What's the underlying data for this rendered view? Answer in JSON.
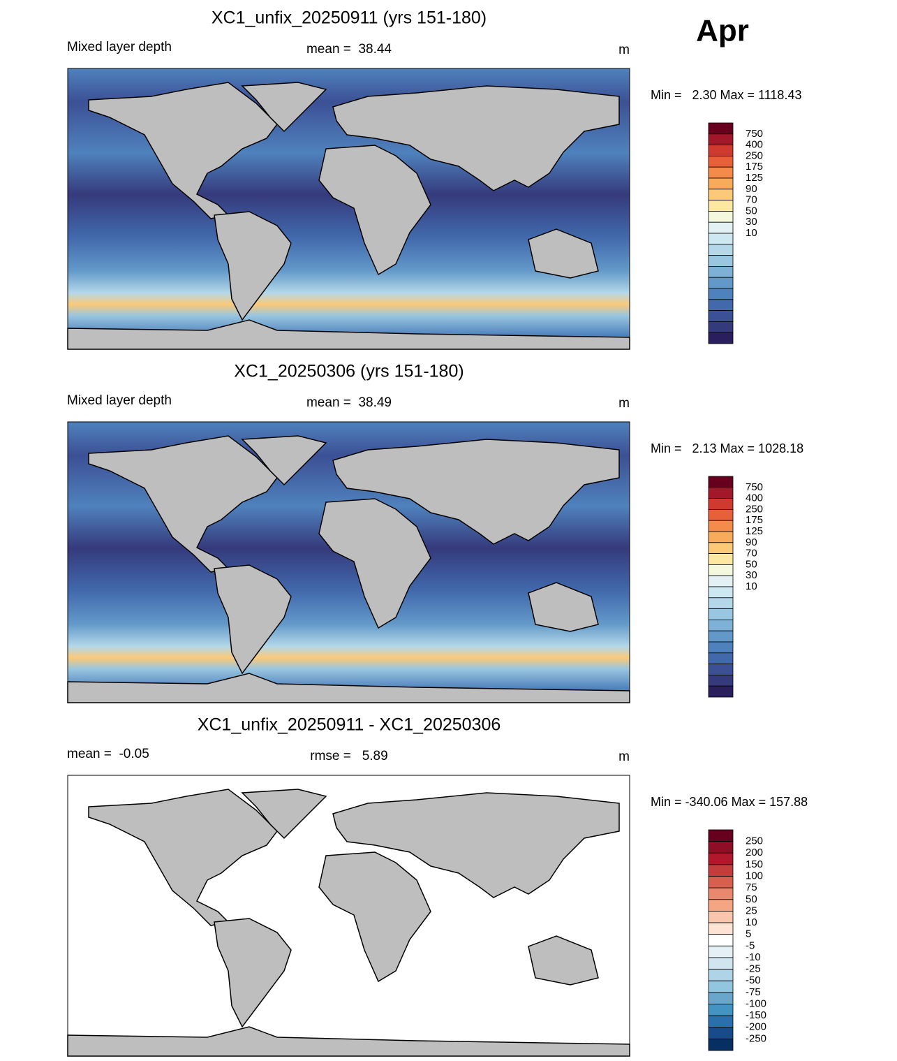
{
  "month": "Apr",
  "panels": [
    {
      "title": "XC1_unfix_20250911 (yrs 151-180)",
      "left_label": "Mixed layer depth",
      "center_label": "mean =  38.44",
      "units": "m",
      "min_max": "Min =   2.30 Max = 1118.43",
      "colorbar": {
        "labels": [
          750,
          400,
          250,
          175,
          125,
          90,
          70,
          50,
          30,
          10
        ],
        "colors": [
          "#67001f",
          "#a2172a",
          "#d03a2e",
          "#e8603a",
          "#f58b4a",
          "#f8ab5a",
          "#fbc978",
          "#fde8a2",
          "#f4f8dc",
          "#e3f1f4",
          "#cde8f0",
          "#b4d8e9",
          "#99c6e0",
          "#7eb1d6",
          "#6399c9",
          "#4f82bd",
          "#4169ac",
          "#3c5095",
          "#353a7c",
          "#2a1e5c"
        ]
      }
    },
    {
      "title": "XC1_20250306 (yrs 151-180)",
      "left_label": "Mixed layer depth",
      "center_label": "mean =  38.49",
      "units": "m",
      "min_max": "Min =   2.13 Max = 1028.18",
      "colorbar": {
        "labels": [
          750,
          400,
          250,
          175,
          125,
          90,
          70,
          50,
          30,
          10
        ],
        "colors": [
          "#67001f",
          "#a2172a",
          "#d03a2e",
          "#e8603a",
          "#f58b4a",
          "#f8ab5a",
          "#fbc978",
          "#fde8a2",
          "#f4f8dc",
          "#e3f1f4",
          "#cde8f0",
          "#b4d8e9",
          "#99c6e0",
          "#7eb1d6",
          "#6399c9",
          "#4f82bd",
          "#4169ac",
          "#3c5095",
          "#353a7c",
          "#2a1e5c"
        ]
      }
    },
    {
      "title": "XC1_unfix_20250911 - XC1_20250306",
      "left_label": "mean =  -0.05",
      "center_label": "rmse =   5.89",
      "units": "m",
      "min_max": "Min = -340.06 Max = 157.88",
      "colorbar": {
        "labels": [
          250,
          200,
          150,
          100,
          75,
          50,
          25,
          10,
          5,
          -5,
          -10,
          -25,
          -50,
          -75,
          -100,
          -150,
          -200,
          -250
        ],
        "colors": [
          "#67001f",
          "#8f0d25",
          "#b2182b",
          "#c43c3c",
          "#d6604d",
          "#e8896f",
          "#f4a582",
          "#f9c6ac",
          "#fde3d4",
          "#ffffff",
          "#e5eff6",
          "#d1e5f0",
          "#b0d4e7",
          "#92c5de",
          "#6aa6cc",
          "#4393c3",
          "#2a6fae",
          "#174b8a",
          "#053061"
        ]
      }
    }
  ]
}
